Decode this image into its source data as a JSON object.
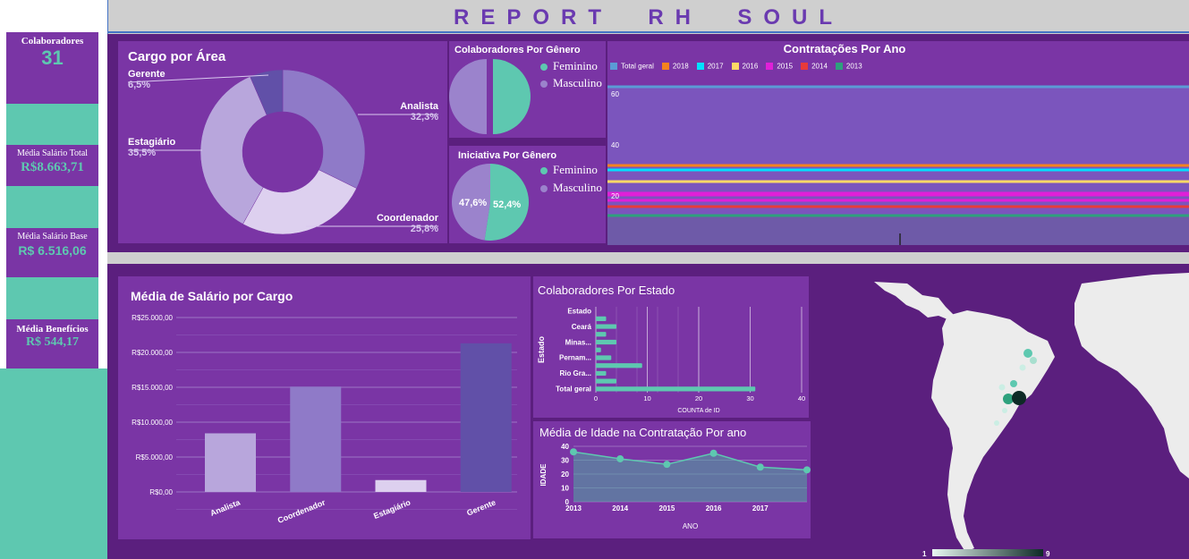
{
  "header": {
    "title": "REPORT  RH  SOUL"
  },
  "kpis": {
    "colaboradores": {
      "label": "Colaboradores",
      "value": "31"
    },
    "media_salario_total": {
      "label": "Média Salário Total",
      "value": "R$8.663,71"
    },
    "media_salario_base": {
      "label": "Média Salário Base",
      "value": "R$ 6.516,06"
    },
    "media_beneficios": {
      "label": "Média Benefícios",
      "value": "R$ 544,17"
    }
  },
  "cargo_area": {
    "title": "Cargo por Área",
    "slices": [
      {
        "name": "Analista",
        "pct": "32,3%",
        "value": 32.3,
        "color": "#8f7ac8"
      },
      {
        "name": "Coordenador",
        "pct": "25,8%",
        "value": 25.8,
        "color": "#ddd0ef"
      },
      {
        "name": "Estagiário",
        "pct": "35,5%",
        "value": 35.5,
        "color": "#b8a6dc"
      },
      {
        "name": "Gerente",
        "pct": "6,5%",
        "value": 6.5,
        "color": "#6150a8"
      }
    ]
  },
  "colab_genero": {
    "title": "Colaboradores Por Gênero",
    "legend": [
      "Feminino",
      "Masculino"
    ],
    "colors": {
      "feminino": "#5ec8b0",
      "masculino": "#9b83cc"
    }
  },
  "iniciativa_genero": {
    "title": "Iniciativa Por Gênero",
    "legend": [
      "Feminino",
      "Masculino"
    ],
    "values": {
      "feminino": 52.4,
      "masculino": 47.6
    },
    "labels": {
      "feminino": "52,4%",
      "masculino": "47,6%"
    }
  },
  "contratacoes": {
    "title": "Contratações Por Ano",
    "legend": [
      {
        "name": "Total geral",
        "color": "#5b9bd5"
      },
      {
        "name": "2018",
        "color": "#f4831f"
      },
      {
        "name": "2017",
        "color": "#00e1ff"
      },
      {
        "name": "2016",
        "color": "#ffd966"
      },
      {
        "name": "2015",
        "color": "#e020d8"
      },
      {
        "name": "2014",
        "color": "#e83a3a"
      },
      {
        "name": "2013",
        "color": "#2ea17d"
      }
    ],
    "y_ticks": [
      "60",
      "40",
      "20"
    ]
  },
  "salario_cargo": {
    "title": "Média de Salário por Cargo",
    "y_ticks": [
      "R$25.000,00",
      "R$20.000,00",
      "R$15.000,00",
      "R$10.000,00",
      "R$5.000,00",
      "R$0,00"
    ]
  },
  "chart_data": [
    {
      "type": "bar",
      "title": "Média de Salário por Cargo",
      "categories": [
        "Analista",
        "Coordenador",
        "Estagiário",
        "Gerente"
      ],
      "values": [
        8400,
        15100,
        1700,
        21300
      ],
      "colors": [
        "#b8a6dc",
        "#8f7ac8",
        "#ddd0ef",
        "#6150a8"
      ],
      "ylim": [
        0,
        25000
      ]
    },
    {
      "type": "bar",
      "title": "Colaboradores Por Estado",
      "orientation": "horizontal",
      "ylabel": "Estado",
      "xlabel": "COUNTA de ID",
      "categories": [
        "Estado",
        "",
        "Ceará",
        "",
        "Minas...",
        "",
        "Pernam...",
        "",
        "Rio Gra...",
        "",
        "Total geral"
      ],
      "values": [
        0,
        2,
        4,
        2,
        4,
        1,
        3,
        9,
        2,
        4,
        31
      ],
      "xlim": [
        0,
        40
      ],
      "x_ticks": [
        "0",
        "10",
        "20",
        "30",
        "40"
      ],
      "color": "#5ec8b0"
    },
    {
      "type": "area",
      "title": "Média de Idade na Contratação Por ano",
      "xlabel": "ANO",
      "ylabel": "IDADE",
      "x": [
        2013,
        2014,
        2015,
        2016,
        2017,
        2018
      ],
      "values": [
        36,
        31,
        27,
        35,
        25,
        23
      ],
      "x_ticks": [
        "2013",
        "2014",
        "2015",
        "2016",
        "2017"
      ],
      "ylim": [
        0,
        40
      ],
      "y_ticks": [
        "0",
        "10",
        "20",
        "30",
        "40"
      ]
    }
  ],
  "map": {
    "legend_min": "1",
    "legend_max": "9"
  }
}
